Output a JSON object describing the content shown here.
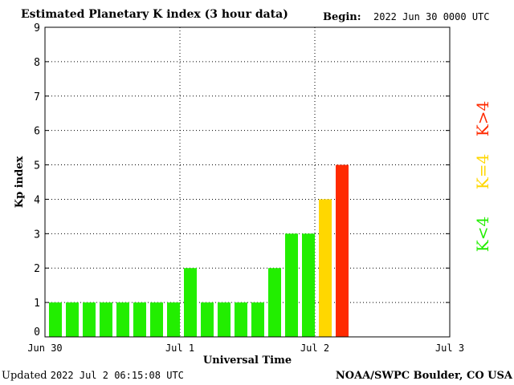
{
  "header": {
    "title": "Estimated Planetary K index (3 hour data)",
    "begin_label": "Begin:",
    "begin_value": "2022 Jun 30 0000 UTC"
  },
  "footer": {
    "updated_label": "Updated",
    "updated_value": "2022 Jul  2 06:15:08 UTC",
    "source": "NOAA/SWPC Boulder, CO USA"
  },
  "legend": [
    {
      "label": "K>4",
      "color": "#ff2a00"
    },
    {
      "label": "K=4",
      "color": "#ffd700"
    },
    {
      "label": "K<4",
      "color": "#22ee00"
    }
  ],
  "chart_data": {
    "type": "bar",
    "title": "Estimated Planetary K index (3 hour data)",
    "xlabel": "Universal Time",
    "ylabel": "Kp index",
    "ylim": [
      0,
      9
    ],
    "yticks": [
      0,
      1,
      2,
      3,
      4,
      5,
      6,
      7,
      8,
      9
    ],
    "xlim_days": [
      "Jun 30",
      "Jul 1",
      "Jul 2",
      "Jul 3"
    ],
    "bars_per_day": 8,
    "grid": true,
    "series": [
      {
        "values": [
          1,
          1,
          1,
          1,
          1,
          1,
          1,
          1,
          2,
          1,
          1,
          1,
          1,
          2,
          3,
          3,
          4,
          5
        ]
      }
    ]
  }
}
